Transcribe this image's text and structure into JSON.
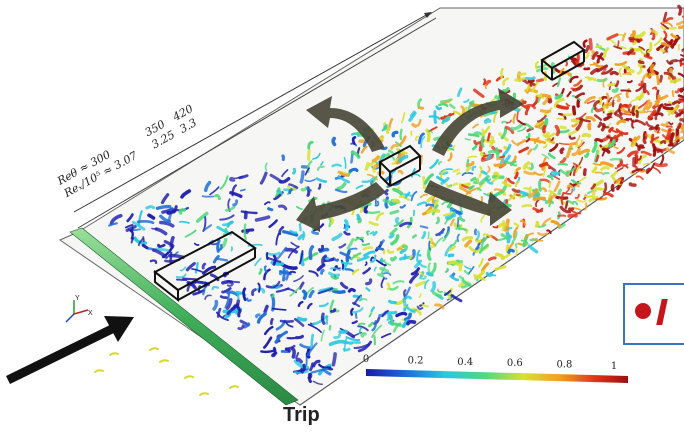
{
  "annotations": {
    "re_theta_label": "Reθ ≈ 300",
    "re_theta_mid": "350",
    "re_theta_end": "420",
    "re_x_label": "Reₓ/10⁵ ≈ 3.07",
    "re_x_mid": "3.25",
    "re_x_end": "3.3",
    "trip_label": "Trip",
    "axis_y": "Y",
    "axis_x": "X"
  },
  "colorbar": {
    "ticks": [
      "0",
      "0.2",
      "0.4",
      "0.6",
      "0.8",
      "1"
    ],
    "range": [
      0,
      1
    ],
    "colormap": [
      "#1f1fb0",
      "#1f6fd8",
      "#2bc8e0",
      "#4fd87a",
      "#d8e030",
      "#f0a020",
      "#e03018",
      "#a01010"
    ]
  },
  "colors": {
    "plate_edge": "#555555",
    "arrow_fill": "#4a4838",
    "callout_border": "#3a72c8",
    "callout_accent": "#c4161c"
  }
}
